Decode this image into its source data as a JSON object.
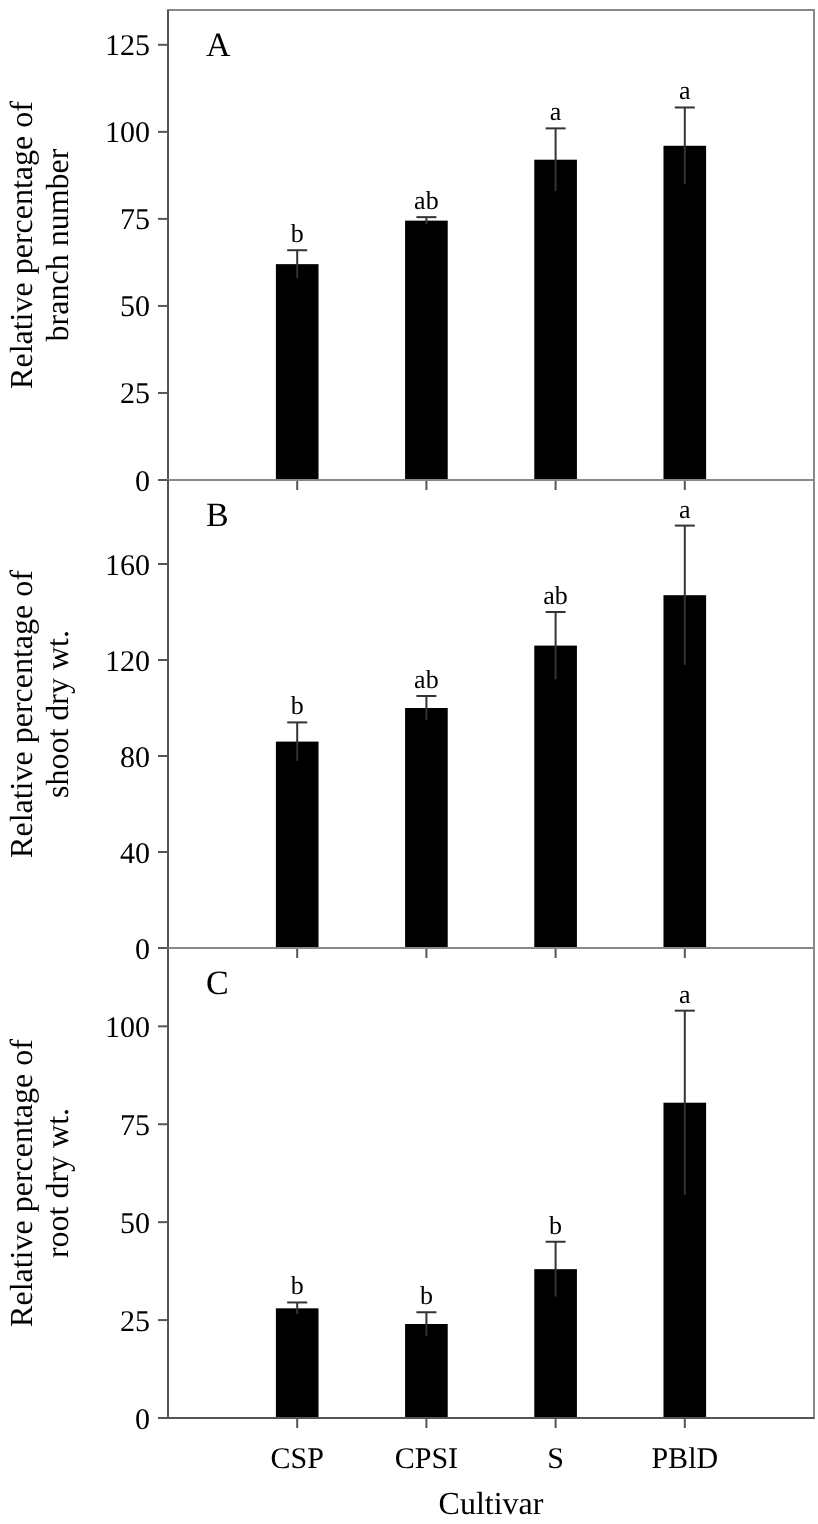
{
  "chart_data": [
    {
      "type": "bar",
      "title": "A",
      "ylabel": "Relative percentage of\nbranch number",
      "categories": [
        "CSP",
        "CPSI",
        "S",
        "PBlD"
      ],
      "values": [
        62,
        74.5,
        92,
        96
      ],
      "errors": [
        4,
        1,
        9,
        11
      ],
      "color": "#000000",
      "ylim": [
        0,
        135
      ],
      "yticks": [
        0,
        25,
        50,
        75,
        100,
        125
      ],
      "tick_labels": "y",
      "annotations": [
        {
          "text": "b",
          "x": "CSP",
          "y": 66
        },
        {
          "text": "ab",
          "x": "CPSI",
          "y": 75.5
        },
        {
          "text": "a",
          "x": "S",
          "y": 101
        },
        {
          "text": "a",
          "x": "PBlD",
          "y": 107
        }
      ]
    },
    {
      "type": "bar",
      "title": "B",
      "ylabel": "Relative percentage of\nshoot dry wt.",
      "categories": [
        "CSP",
        "CPSI",
        "S",
        "PBlD"
      ],
      "values": [
        86,
        100,
        126,
        147
      ],
      "errors": [
        8,
        5,
        14,
        29
      ],
      "color": "#000000",
      "ylim": [
        0,
        195
      ],
      "yticks": [
        0,
        40,
        80,
        120,
        160
      ],
      "tick_labels": "y",
      "annotations": [
        {
          "text": "b",
          "x": "CSP",
          "y": 94
        },
        {
          "text": "ab",
          "x": "CPSI",
          "y": 105
        },
        {
          "text": "ab",
          "x": "S",
          "y": 140
        },
        {
          "text": "a",
          "x": "PBlD",
          "y": 176
        }
      ]
    },
    {
      "type": "bar",
      "title": "C",
      "ylabel": "Relative percentage of\nroot dry wt.",
      "xlabel": "Cultivar",
      "categories": [
        "CSP",
        "CPSI",
        "S",
        "PBlD"
      ],
      "values": [
        28,
        24,
        38,
        80.5
      ],
      "errors": [
        1.5,
        3,
        7,
        23.5
      ],
      "color": "#000000",
      "ylim": [
        0,
        120
      ],
      "yticks": [
        0,
        25,
        50,
        75,
        100
      ],
      "annotations": [
        {
          "text": "b",
          "x": "CSP",
          "y": 29.5
        },
        {
          "text": "b",
          "x": "CPSI",
          "y": 27
        },
        {
          "text": "b",
          "x": "S",
          "y": 45
        },
        {
          "text": "a",
          "x": "PBlD",
          "y": 104
        }
      ]
    }
  ]
}
